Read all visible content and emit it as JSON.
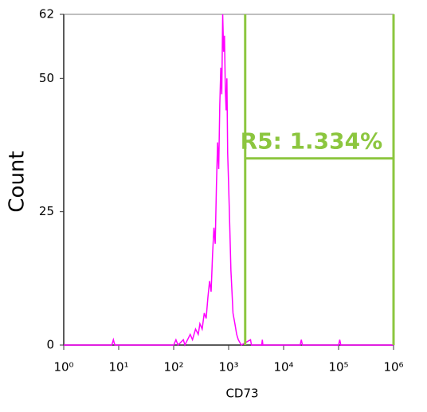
{
  "chart_data": {
    "type": "line",
    "xscale": "log",
    "x_label": "CD73",
    "y_label": "Count",
    "x": [
      1,
      7.5,
      8,
      8.5,
      100,
      110,
      120,
      150,
      160,
      200,
      220,
      250,
      280,
      300,
      330,
      360,
      390,
      420,
      450,
      480,
      510,
      540,
      570,
      600,
      630,
      660,
      690,
      720,
      750,
      780,
      810,
      840,
      870,
      900,
      930,
      960,
      1000,
      1050,
      1100,
      1150,
      1200,
      1300,
      1400,
      1500,
      1700,
      2500,
      2600,
      4000,
      4100,
      4200,
      20000,
      21000,
      22000,
      100000,
      105000,
      110000,
      1000000
    ],
    "series": [
      {
        "name": "CD73",
        "color": "#ff00ff",
        "values": [
          0,
          0,
          1,
          0,
          0,
          1,
          0,
          1,
          0,
          2,
          1,
          3,
          2,
          4,
          3,
          6,
          5,
          9,
          12,
          10,
          17,
          22,
          19,
          30,
          38,
          33,
          45,
          52,
          47,
          62,
          55,
          58,
          48,
          44,
          50,
          36,
          30,
          22,
          14,
          10,
          6,
          4,
          2,
          1,
          0,
          1,
          0,
          0,
          1,
          0,
          0,
          1,
          0,
          0,
          1,
          0,
          0
        ]
      }
    ],
    "gate": {
      "label": "R5: 1.334%",
      "start": 2000,
      "end": 1000000,
      "y": 35,
      "color": "#8cc63f"
    },
    "xlim": [
      1,
      1000000
    ],
    "xticks": [
      {
        "value": 1,
        "label": "10⁰"
      },
      {
        "value": 10,
        "label": "10¹"
      },
      {
        "value": 100,
        "label": "10²"
      },
      {
        "value": 1000,
        "label": "10³"
      },
      {
        "value": 10000,
        "label": "10⁴"
      },
      {
        "value": 100000,
        "label": "10⁵"
      },
      {
        "value": 1000000,
        "label": "10⁶"
      }
    ],
    "ylim": [
      0,
      62
    ],
    "yticks": [
      0,
      25,
      50,
      62
    ]
  }
}
